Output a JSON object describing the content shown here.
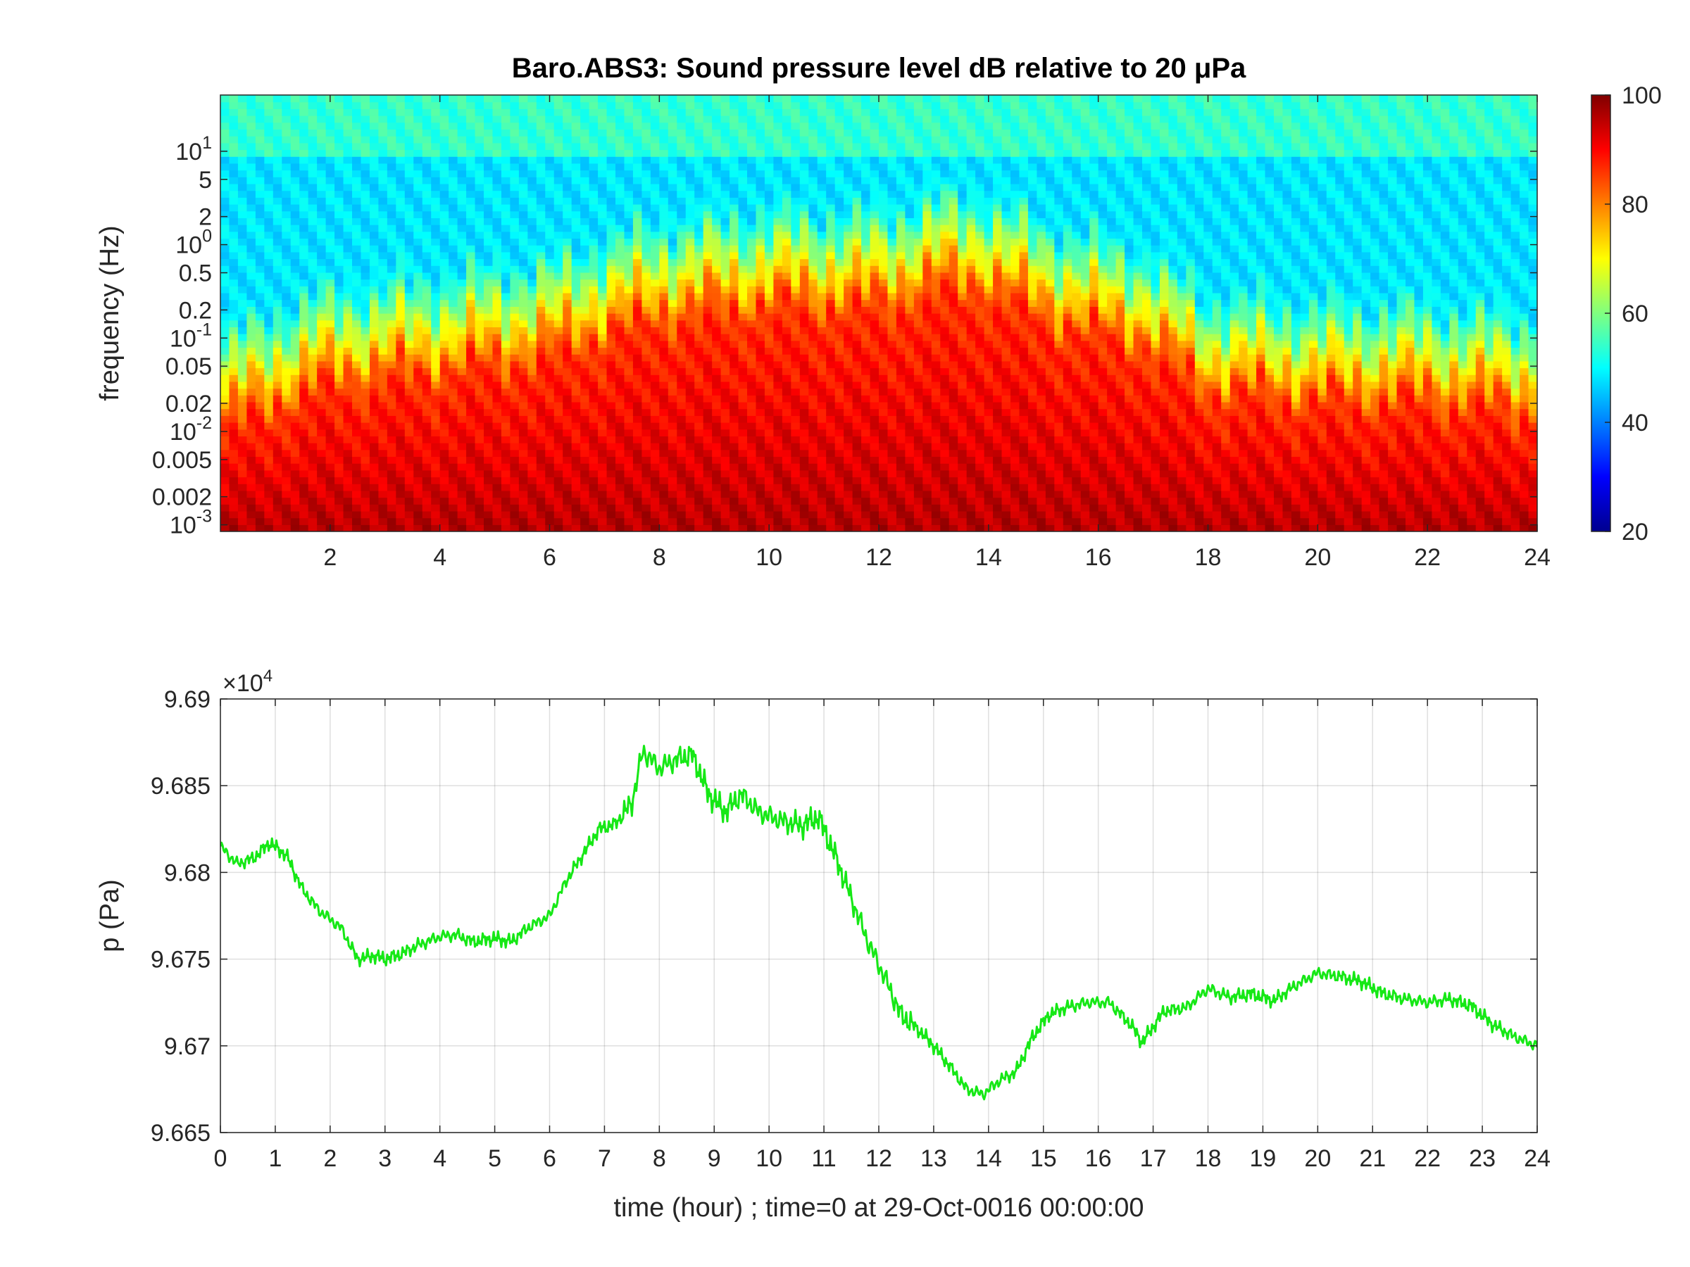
{
  "chart_data": [
    {
      "type": "heatmap",
      "title": "Baro.ABS3: Sound pressure level dB relative to 20 μPa",
      "ylabel": "frequency (Hz)",
      "xlabel": "",
      "x_scale": "linear",
      "y_scale": "log",
      "xlim": [
        0,
        24
      ],
      "ylim": [
        0.00085,
        40
      ],
      "x_ticks": [
        2,
        4,
        6,
        8,
        10,
        12,
        14,
        16,
        18,
        20,
        22,
        24
      ],
      "x_tick_labels": [
        "2",
        "4",
        "6",
        "8",
        "10",
        "12",
        "14",
        "16",
        "18",
        "20",
        "22",
        "24"
      ],
      "y_ticks": [
        0.001,
        0.002,
        0.005,
        0.01,
        0.02,
        0.05,
        0.1,
        0.2,
        0.5,
        1,
        2,
        5,
        10
      ],
      "y_tick_labels": [
        "10^-3",
        "0.002",
        "0.005",
        "10^-2",
        "0.02",
        "0.05",
        "10^-1",
        "0.2",
        "0.5",
        "10^0",
        "2",
        "5",
        "10^1"
      ],
      "colormap": "jet",
      "colorbar": {
        "limits": [
          20,
          100
        ],
        "ticks": [
          20,
          40,
          60,
          80,
          100
        ],
        "tick_labels": [
          "20",
          "40",
          "60",
          "80",
          "100"
        ]
      },
      "grid": false,
      "time_hours": [
        0,
        2,
        4,
        6,
        7,
        8,
        10,
        12,
        13,
        14,
        15,
        16,
        16.8,
        18,
        20,
        22,
        24
      ],
      "high_level_frequency_hz": [
        0.01,
        0.03,
        0.04,
        0.06,
        0.1,
        0.15,
        0.2,
        0.2,
        0.3,
        0.3,
        0.15,
        0.1,
        0.08,
        0.025,
        0.02,
        0.02,
        0.015
      ]
    },
    {
      "type": "line",
      "title": "",
      "xlabel": "time (hour) ; time=0 at 29-Oct-0016 00:00:00",
      "ylabel": "p (Pa)",
      "y_exponent_label": "×10",
      "y_exponent_power": "4",
      "xlim": [
        0,
        24
      ],
      "ylim": [
        96650,
        96900
      ],
      "x_ticks": [
        0,
        1,
        2,
        3,
        4,
        5,
        6,
        7,
        8,
        9,
        10,
        11,
        12,
        13,
        14,
        15,
        16,
        17,
        18,
        19,
        20,
        21,
        22,
        23,
        24
      ],
      "x_tick_labels": [
        "0",
        "1",
        "2",
        "3",
        "4",
        "5",
        "6",
        "7",
        "8",
        "9",
        "10",
        "11",
        "12",
        "13",
        "14",
        "15",
        "16",
        "17",
        "18",
        "19",
        "20",
        "21",
        "22",
        "23",
        "24"
      ],
      "y_ticks": [
        96650,
        96700,
        96750,
        96800,
        96850,
        96900
      ],
      "y_tick_labels": [
        "9.665",
        "9.67",
        "9.675",
        "9.68",
        "9.685",
        "9.69"
      ],
      "grid": true,
      "series": [
        {
          "color": "#16e816",
          "x": [
            0,
            0.3,
            0.6,
            0.9,
            1.2,
            1.5,
            1.8,
            2.2,
            2.5,
            2.8,
            3.0,
            3.3,
            3.6,
            4.0,
            4.3,
            4.6,
            5.0,
            5.3,
            5.6,
            6.0,
            6.3,
            6.6,
            6.9,
            7.2,
            7.5,
            7.7,
            8.0,
            8.3,
            8.6,
            8.9,
            9.2,
            9.5,
            9.8,
            10.2,
            10.6,
            10.9,
            11.2,
            11.5,
            11.8,
            12.1,
            12.4,
            12.7,
            13.0,
            13.3,
            13.6,
            13.9,
            14.2,
            14.5,
            14.8,
            15.1,
            15.4,
            15.8,
            16.2,
            16.6,
            16.8,
            17.2,
            17.6,
            18.0,
            18.4,
            18.8,
            19.2,
            19.6,
            20.0,
            20.4,
            20.8,
            21.2,
            21.6,
            22.0,
            22.4,
            22.8,
            23.2,
            23.6,
            24.0
          ],
          "y": [
            96815,
            96805,
            96808,
            96817,
            96810,
            96790,
            96778,
            96768,
            96750,
            96752,
            96750,
            96753,
            96758,
            96763,
            96764,
            96760,
            96762,
            96760,
            96768,
            96775,
            96795,
            96810,
            96825,
            96828,
            96840,
            96870,
            96860,
            96865,
            96868,
            96845,
            96835,
            96845,
            96835,
            96830,
            96827,
            96832,
            96810,
            96785,
            96760,
            96740,
            96718,
            96710,
            96700,
            96688,
            96675,
            96672,
            96680,
            96685,
            96705,
            96718,
            96722,
            96725,
            96725,
            96712,
            96702,
            96720,
            96722,
            96733,
            96728,
            96730,
            96726,
            96735,
            96742,
            96740,
            96737,
            96730,
            96727,
            96725,
            96727,
            96723,
            96712,
            96705,
            96700
          ]
        }
      ]
    }
  ]
}
